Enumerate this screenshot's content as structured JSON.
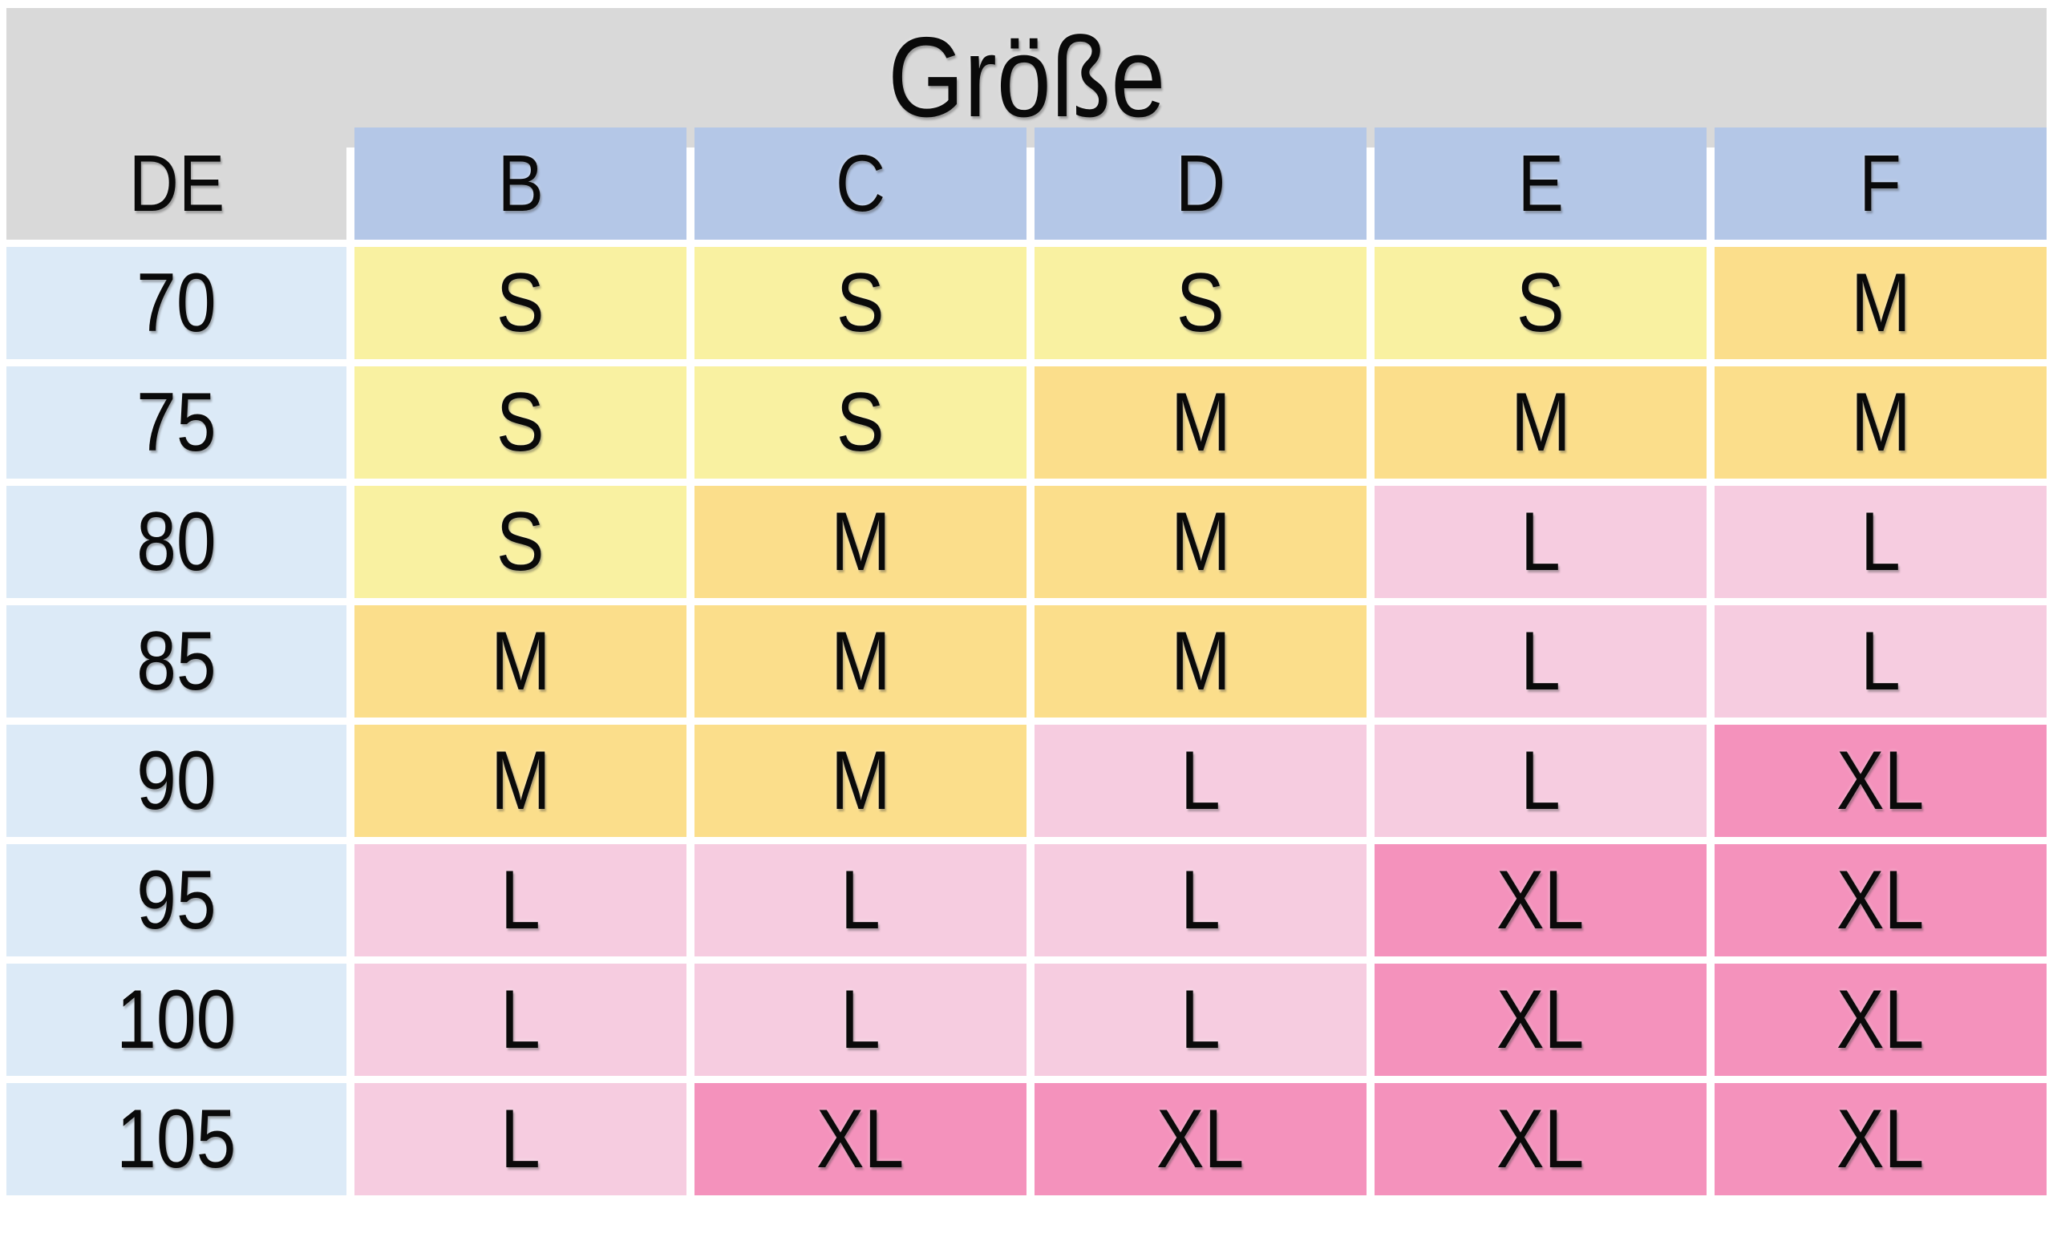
{
  "title": "Größe",
  "chart_data": {
    "type": "table",
    "title": "Größe",
    "columns": [
      "DE",
      "B",
      "C",
      "D",
      "E",
      "F"
    ],
    "rows": [
      [
        "70",
        "S",
        "S",
        "S",
        "S",
        "M"
      ],
      [
        "75",
        "S",
        "S",
        "M",
        "M",
        "M"
      ],
      [
        "80",
        "S",
        "M",
        "M",
        "L",
        "L"
      ],
      [
        "85",
        "M",
        "M",
        "M",
        "L",
        "L"
      ],
      [
        "90",
        "M",
        "M",
        "L",
        "L",
        "XL"
      ],
      [
        "95",
        "L",
        "L",
        "L",
        "XL",
        "XL"
      ],
      [
        "100",
        "L",
        "L",
        "L",
        "XL",
        "XL"
      ],
      [
        "105",
        "L",
        "XL",
        "XL",
        "XL",
        "XL"
      ]
    ],
    "legend_note": "cell background encodes size value",
    "layout": "first column = German band size (DE), columns B–F = cup sizes"
  },
  "colors": {
    "title_bg": "#D9D9D9",
    "column_header_bg": "#B4C7E7",
    "row_header_bg": "#DCEAF7",
    "background": "#FFFFFF",
    "size_S": "#F9F1A1",
    "size_M": "#FBDE8B",
    "size_L": "#F6CCE0",
    "size_XL": "#F492BC",
    "text": "#0A0A0A"
  }
}
